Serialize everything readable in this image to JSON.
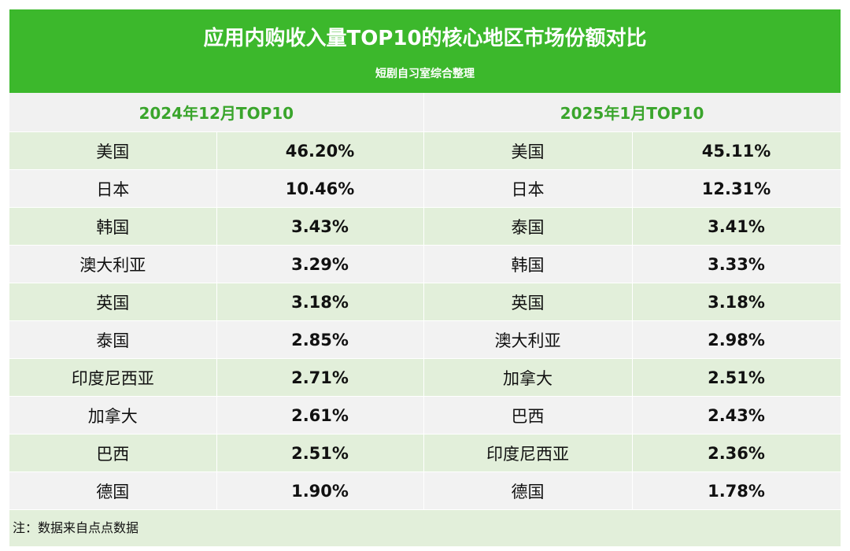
{
  "header": {
    "title": "应用内购收入量TOP10的核心地区市场份额对比",
    "subtitle": "短剧自习室综合整理"
  },
  "table": {
    "headers": [
      "2024年12月TOP10",
      "2025年1月TOP10"
    ],
    "rows": [
      [
        "美国",
        "46.20%",
        "美国",
        "45.11%"
      ],
      [
        "日本",
        "10.46%",
        "日本",
        "12.31%"
      ],
      [
        "韩国",
        "3.43%",
        "泰国",
        "3.41%"
      ],
      [
        "澳大利亚",
        "3.29%",
        "韩国",
        "3.33%"
      ],
      [
        "英国",
        "3.18%",
        "英国",
        "3.18%"
      ],
      [
        "泰国",
        "2.85%",
        "澳大利亚",
        "2.98%"
      ],
      [
        "印度尼西亚",
        "2.71%",
        "加拿大",
        "2.51%"
      ],
      [
        "加拿大",
        "2.61%",
        "巴西",
        "2.43%"
      ],
      [
        "巴西",
        "2.51%",
        "印度尼西亚",
        "2.36%"
      ],
      [
        "德国",
        "1.90%",
        "德国",
        "1.78%"
      ]
    ]
  },
  "note": "注：数据来自点点数据"
}
